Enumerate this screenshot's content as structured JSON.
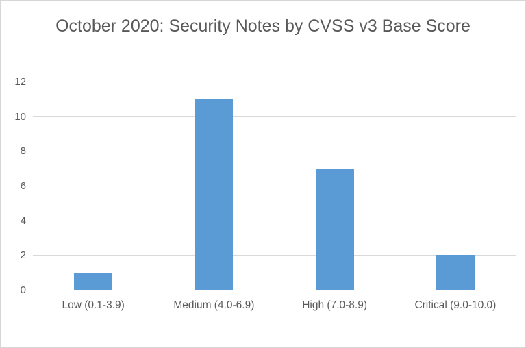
{
  "chart_data": {
    "type": "bar",
    "title": "October 2020: Security Notes by CVSS v3 Base Score",
    "categories": [
      "Low (0.1-3.9)",
      "Medium (4.0-6.9)",
      "High (7.0-8.9)",
      "Critical (9.0-10.0)"
    ],
    "values": [
      1,
      11,
      7,
      2
    ],
    "xlabel": "",
    "ylabel": "",
    "ylim": [
      0,
      12
    ],
    "yticks": [
      0,
      2,
      4,
      6,
      8,
      10,
      12
    ],
    "grid": true,
    "legend": false,
    "colors": {
      "bar": "#5b9bd5",
      "gridline": "#d9d9d9",
      "text": "#595959",
      "frame_border": "#d6d6d6",
      "background": "#ffffff"
    }
  }
}
